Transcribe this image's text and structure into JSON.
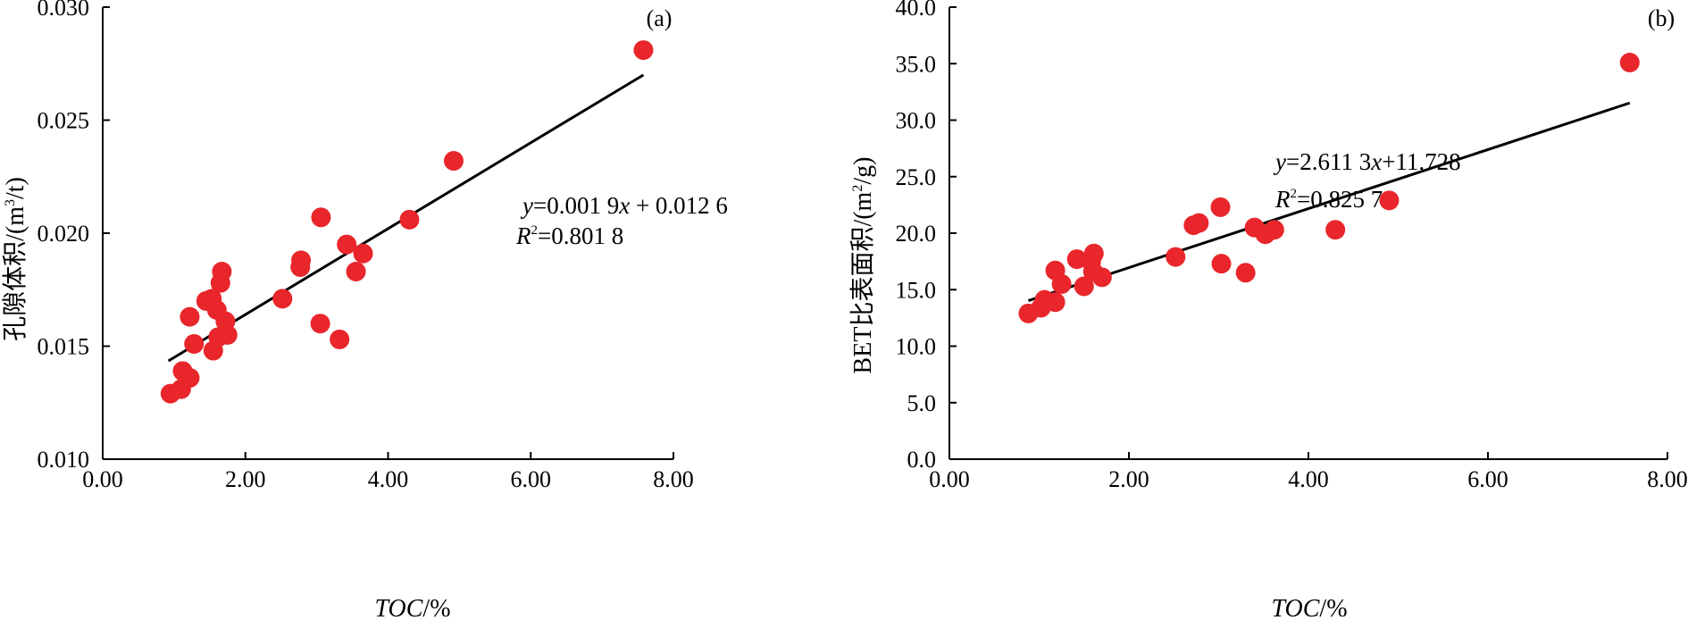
{
  "chart_data": [
    {
      "type": "scatter",
      "panel_label": "(a)",
      "xlabel_italic": "TOC",
      "xlabel_rest": "/%",
      "ylabel_main": "孔隙体积/(m",
      "ylabel_sup": "3",
      "ylabel_end": "/t)",
      "xlim": [
        0,
        8
      ],
      "ylim": [
        0.01,
        0.03
      ],
      "xticks": [
        "0.00",
        "2.00",
        "4.00",
        "6.00",
        "8.00"
      ],
      "yticks": [
        "0.010",
        "0.015",
        "0.020",
        "0.025",
        "0.030"
      ],
      "point_color": "#e8262b",
      "points": [
        {
          "x": 0.95,
          "y": 0.0129
        },
        {
          "x": 1.1,
          "y": 0.0131
        },
        {
          "x": 1.12,
          "y": 0.0139
        },
        {
          "x": 1.22,
          "y": 0.0136
        },
        {
          "x": 1.22,
          "y": 0.0163
        },
        {
          "x": 1.28,
          "y": 0.0151
        },
        {
          "x": 1.45,
          "y": 0.017
        },
        {
          "x": 1.53,
          "y": 0.0171
        },
        {
          "x": 1.55,
          "y": 0.0148
        },
        {
          "x": 1.6,
          "y": 0.0166
        },
        {
          "x": 1.62,
          "y": 0.0154
        },
        {
          "x": 1.65,
          "y": 0.0178
        },
        {
          "x": 1.67,
          "y": 0.0183
        },
        {
          "x": 1.72,
          "y": 0.0161
        },
        {
          "x": 1.75,
          "y": 0.0155
        },
        {
          "x": 2.52,
          "y": 0.0171
        },
        {
          "x": 2.77,
          "y": 0.0185
        },
        {
          "x": 2.78,
          "y": 0.0188
        },
        {
          "x": 3.05,
          "y": 0.016
        },
        {
          "x": 3.06,
          "y": 0.0207
        },
        {
          "x": 3.32,
          "y": 0.0153
        },
        {
          "x": 3.42,
          "y": 0.0195
        },
        {
          "x": 3.55,
          "y": 0.0183
        },
        {
          "x": 3.65,
          "y": 0.0191
        },
        {
          "x": 4.3,
          "y": 0.0206
        },
        {
          "x": 4.92,
          "y": 0.0232
        },
        {
          "x": 7.58,
          "y": 0.0281
        }
      ],
      "fit": {
        "slope": 0.0019,
        "intercept": 0.0126,
        "x_start": 0.92,
        "x_end": 7.58
      },
      "eq_y": "y",
      "eq_mid": "=0.001 9",
      "eq_x": "x",
      "eq_end": " + 0.012 6",
      "r2_R": "R",
      "r2_sup": "2",
      "r2_val": "=0.801 8"
    },
    {
      "type": "scatter",
      "panel_label": "(b)",
      "xlabel_italic": "TOC",
      "xlabel_rest": "/%",
      "ylabel_main": "BET比表面积/(m",
      "ylabel_sup": "2",
      "ylabel_end": "/g)",
      "xlim": [
        0,
        8
      ],
      "ylim": [
        0,
        40
      ],
      "xticks": [
        "0.00",
        "2.00",
        "4.00",
        "6.00",
        "8.00"
      ],
      "yticks": [
        "0.0",
        "5.0",
        "10.0",
        "15.0",
        "20.0",
        "25.0",
        "30.0",
        "35.0",
        "40.0"
      ],
      "point_color": "#e8262b",
      "points": [
        {
          "x": 0.88,
          "y": 12.9
        },
        {
          "x": 1.02,
          "y": 13.4
        },
        {
          "x": 1.06,
          "y": 14.1
        },
        {
          "x": 1.18,
          "y": 13.9
        },
        {
          "x": 1.18,
          "y": 16.7
        },
        {
          "x": 1.25,
          "y": 15.5
        },
        {
          "x": 1.42,
          "y": 17.7
        },
        {
          "x": 1.5,
          "y": 15.3
        },
        {
          "x": 1.58,
          "y": 17.5
        },
        {
          "x": 1.6,
          "y": 16.6
        },
        {
          "x": 1.61,
          "y": 18.2
        },
        {
          "x": 1.7,
          "y": 16.1
        },
        {
          "x": 2.52,
          "y": 17.9
        },
        {
          "x": 2.72,
          "y": 20.7
        },
        {
          "x": 2.78,
          "y": 20.9
        },
        {
          "x": 3.02,
          "y": 22.3
        },
        {
          "x": 3.03,
          "y": 17.3
        },
        {
          "x": 3.3,
          "y": 16.5
        },
        {
          "x": 3.4,
          "y": 20.5
        },
        {
          "x": 3.52,
          "y": 19.9
        },
        {
          "x": 3.62,
          "y": 20.3
        },
        {
          "x": 4.3,
          "y": 20.3
        },
        {
          "x": 4.9,
          "y": 22.9
        },
        {
          "x": 7.58,
          "y": 35.1
        }
      ],
      "fit": {
        "slope": 2.6113,
        "intercept": 11.728,
        "x_start": 0.88,
        "x_end": 7.58
      },
      "eq_y": "y",
      "eq_mid": "=2.611 3",
      "eq_x": "x",
      "eq_end": "+11.728",
      "r2_R": "R",
      "r2_sup": "2",
      "r2_val": "=0.825 7"
    }
  ]
}
